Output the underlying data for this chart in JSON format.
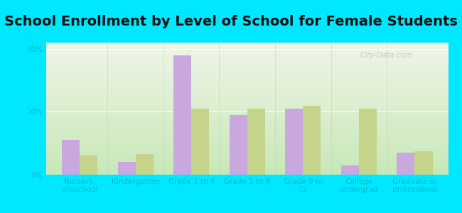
{
  "title": "School Enrollment by Level of School for Female Students",
  "categories": [
    "Nursery,\npreschool",
    "Kindergarten",
    "Grade 1 to 4",
    "Grade 5 to 8",
    "Grade 9 to\n12",
    "College\nundergrad",
    "Graduate or\nprofessional"
  ],
  "mountain_city": [
    11,
    4,
    38,
    19,
    21,
    3,
    7
  ],
  "tennessee": [
    6,
    6.5,
    21,
    21,
    22,
    21,
    7.5
  ],
  "mc_color": "#c9a8df",
  "tn_color": "#c5d48a",
  "background_outer": "#00e8ff",
  "background_inner_top": "#f0f5e8",
  "background_inner_bottom": "#c8e8b8",
  "ylim": [
    0,
    42
  ],
  "yticks": [
    0,
    20,
    40
  ],
  "ytick_labels": [
    "0%",
    "20%",
    "40%"
  ],
  "bar_width": 0.32,
  "title_fontsize": 14,
  "tick_fontsize": 7.5,
  "legend_fontsize": 9,
  "watermark": "City-Data.com",
  "axis_text_color": "#00bbcc",
  "title_color": "#111111"
}
